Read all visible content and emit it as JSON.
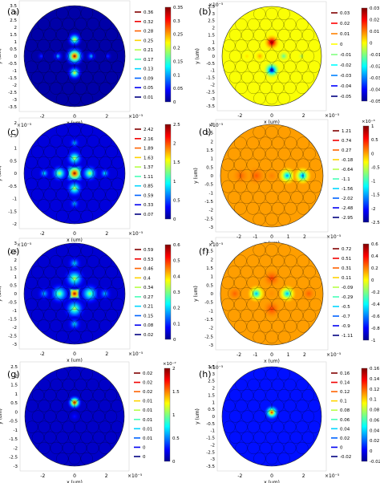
{
  "figure": {
    "panels": [
      {
        "label": "(a)",
        "exp": "",
        "x_exp": "×10⁻⁵",
        "ylabel": "y (um)",
        "xlabel": "x (um)",
        "yticks": [
          "3.5",
          "3",
          "2.5",
          "2",
          "1.5",
          "1",
          "0.5",
          "0",
          "-0.5",
          "-1",
          "-1.5",
          "-2",
          "-2.5",
          "-3",
          "-3.5"
        ],
        "xticks": [
          "-2",
          "0",
          "2"
        ],
        "legend": [
          "0.36",
          "0.32",
          "0.28",
          "0.25",
          "0.21",
          "0.17",
          "0.13",
          "0.09",
          "0.05",
          "0.01"
        ],
        "cbar_exp": "",
        "cbar": [
          "0.35",
          "0.3",
          "0.25",
          "0.2",
          "0.15",
          "0.1",
          "0.05",
          "0"
        ],
        "field": "a"
      },
      {
        "label": "(b)",
        "exp": "×10⁻⁵",
        "x_exp": "",
        "ylabel": "y (um)",
        "xlabel": "x (um)",
        "yticks": [
          "3.5",
          "3",
          "2.5",
          "2",
          "1.5",
          "1",
          "0.5",
          "0",
          "-0.5",
          "-1",
          "-1.5",
          "-2",
          "-2.5",
          "-3",
          "-3.5"
        ],
        "xticks": [
          "-2",
          "0",
          "2"
        ],
        "legend": [
          "0.03",
          "0.02",
          "0.01",
          "0",
          "-0.01",
          "-0.02",
          "-0.03",
          "-0.04",
          "-0.05"
        ],
        "cbar_exp": "",
        "cbar": [
          "0.03",
          "0.02",
          "0.01",
          "0",
          "-0.01",
          "-0.02",
          "-0.03",
          "-0.04",
          "-0.05"
        ],
        "field": "b"
      },
      {
        "label": "(c)",
        "exp": "×10⁻⁵",
        "x_exp": "",
        "ylabel": "y (um)",
        "xlabel": "x (um)",
        "yticks": [
          "2",
          "1.5",
          "1",
          "0.5",
          "0",
          "-0.5",
          "-1",
          "-1.5",
          "-2"
        ],
        "xticks": [
          "-2",
          "0",
          "2"
        ],
        "legend": [
          "2.42",
          "2.16",
          "1.89",
          "1.63",
          "1.37",
          "1.11",
          "0.85",
          "0.59",
          "0.33",
          "0.07"
        ],
        "cbar_exp": "",
        "cbar": [
          "2.5",
          "2",
          "1.5",
          "1",
          "0.5",
          "0"
        ],
        "field": "c"
      },
      {
        "label": "(d)",
        "exp": "×10⁻⁵",
        "x_exp": "",
        "ylabel": "y (um)",
        "xlabel": "x (um)",
        "yticks": [
          "3",
          "2.5",
          "2",
          "1.5",
          "1",
          "0.5",
          "0",
          "-0.5",
          "-1",
          "-1.5",
          "-2",
          "-2.5",
          "-3"
        ],
        "xticks": [
          "-2",
          "-1",
          "0",
          "1",
          "2"
        ],
        "legend": [
          "1.21",
          "0.74",
          "0.27",
          "-0.18",
          "-0.64",
          "-1.1",
          "-1.56",
          "-2.02",
          "-2.48",
          "-2.95"
        ],
        "cbar_exp": "×10⁻³",
        "cbar": [
          "1",
          "0.5",
          "0",
          "-0.5",
          "-1",
          "-1.5",
          "-2",
          "-2.5"
        ],
        "field": "d"
      },
      {
        "label": "(e)",
        "exp": "×10⁻⁵",
        "x_exp": "",
        "ylabel": "y (um)",
        "xlabel": "x (um)",
        "yticks": [
          "3",
          "2.5",
          "2",
          "1.5",
          "1",
          "0.5",
          "0",
          "-0.5",
          "-1",
          "-1.5",
          "-2",
          "-2.5",
          "-3"
        ],
        "xticks": [
          "-2",
          "0",
          "2"
        ],
        "legend": [
          "0.59",
          "0.53",
          "0.46",
          "0.4",
          "0.34",
          "0.27",
          "0.21",
          "0.15",
          "0.08",
          "0.02"
        ],
        "cbar_exp": "",
        "cbar": [
          "0.6",
          "0.5",
          "0.4",
          "0.3",
          "0.2",
          "0.1",
          "0"
        ],
        "field": "e"
      },
      {
        "label": "(f)",
        "exp": "×10⁻⁵",
        "x_exp": "",
        "ylabel": "y (um)",
        "xlabel": "x (um)",
        "yticks": [
          "3",
          "2.5",
          "2",
          "1.5",
          "1",
          "0.5",
          "0",
          "-0.5",
          "-1",
          "-1.5",
          "-2",
          "-2.5",
          "-3"
        ],
        "xticks": [
          "-2",
          "-1",
          "0",
          "1",
          "2"
        ],
        "legend": [
          "0.72",
          "0.51",
          "0.31",
          "0.11",
          "-0.09",
          "-0.29",
          "-0.5",
          "-0.7",
          "-0.9",
          "-1.11"
        ],
        "cbar_exp": "",
        "cbar": [
          "0.6",
          "0.4",
          "0.2",
          "0",
          "-0.2",
          "-0.4",
          "-0.6",
          "-0.8",
          "-1"
        ],
        "field": "f"
      },
      {
        "label": "(g)",
        "exp": "",
        "x_exp": "",
        "ylabel": "y (um)",
        "xlabel": "x (um)",
        "yticks": [
          "2.5",
          "2",
          "1.5",
          "1",
          "0.5",
          "0",
          "-0.5",
          "-1",
          "-1.5",
          "-2",
          "-2.5",
          "-3"
        ],
        "xticks": [
          "-2",
          "0",
          "2"
        ],
        "legend": [
          "0.02",
          "0.02",
          "0.02",
          "0.01",
          "0.01",
          "0.01",
          "0.01",
          "0.01",
          "0",
          "0"
        ],
        "cbar_exp": "×10⁻²",
        "cbar": [
          "2",
          "1.5",
          "1",
          "0.5",
          "0"
        ],
        "field": "g"
      },
      {
        "label": "(h)",
        "exp": "×10⁻⁵",
        "x_exp": "",
        "ylabel": "y (um)",
        "xlabel": "x (um)",
        "yticks": [
          "3.5",
          "3",
          "2.5",
          "2",
          "1.5",
          "1",
          "0.5",
          "0",
          "-0.5",
          "-1",
          "-1.5",
          "-2",
          "-2.5",
          "-3",
          "-3.5"
        ],
        "xticks": [
          "-2",
          "0",
          "2"
        ],
        "legend": [
          "0.16",
          "0.14",
          "0.12",
          "0.1",
          "0.08",
          "0.06",
          "0.04",
          "0.02",
          "0",
          "-0.02"
        ],
        "cbar_exp": "",
        "cbar": [
          "0.16",
          "0.14",
          "0.12",
          "0.1",
          "0.08",
          "0.06",
          "0.04",
          "0.02",
          "0",
          "-0.02"
        ],
        "field": "h"
      }
    ],
    "xlabel_exp_note": "×10⁻⁵"
  }
}
